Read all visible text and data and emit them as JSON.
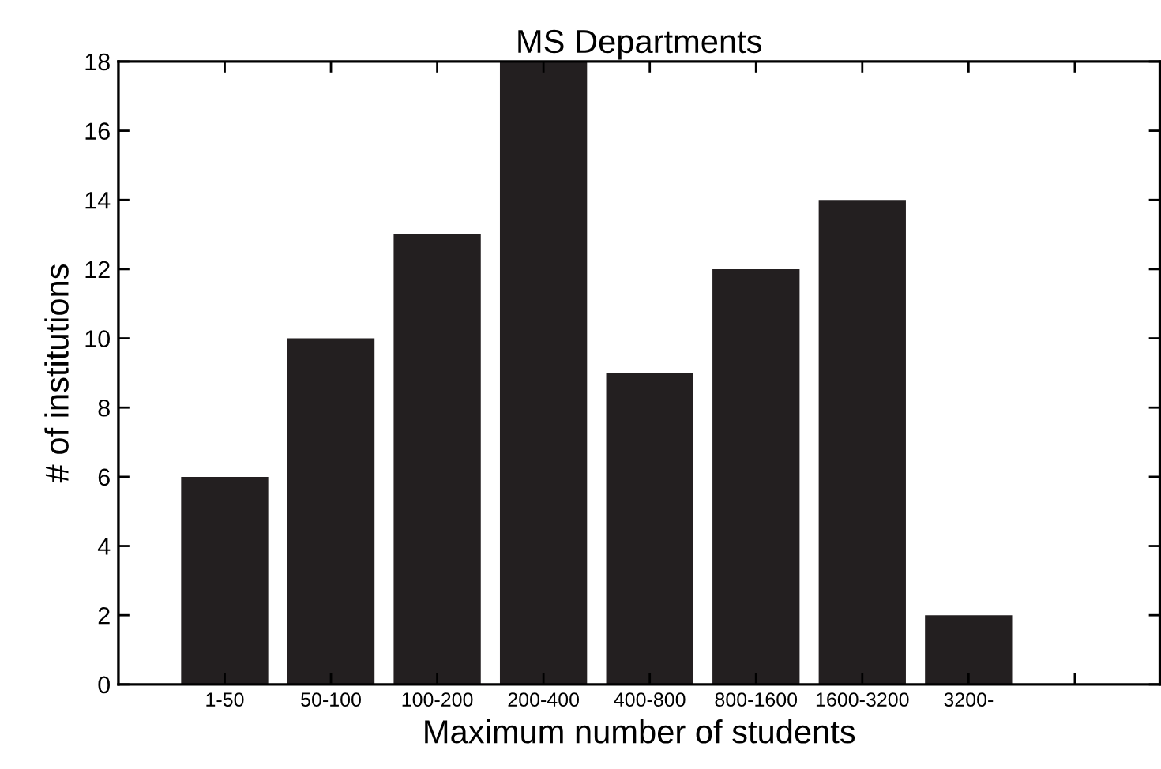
{
  "chart_data": {
    "type": "bar",
    "title": "MS Departments",
    "xlabel": "Maximum number of students",
    "ylabel": "# of institutions",
    "categories": [
      "1-50",
      "50-100",
      "100-200",
      "200-400",
      "400-800",
      "800-1600",
      "1600-3200",
      "3200-",
      null
    ],
    "values": [
      6,
      10,
      13,
      18,
      9,
      12,
      14,
      2,
      null
    ],
    "color": "#231f20",
    "ylim": [
      0,
      18
    ],
    "yticks": [
      0,
      2,
      4,
      6,
      8,
      10,
      12,
      14,
      16,
      18
    ],
    "grid": false
  }
}
